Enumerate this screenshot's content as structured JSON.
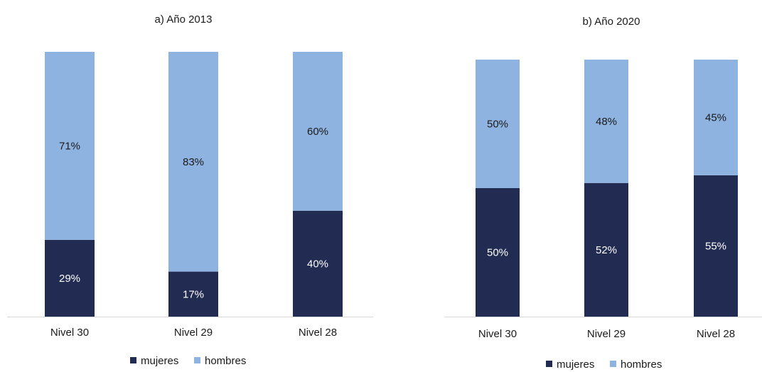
{
  "chart_data": [
    {
      "type": "bar",
      "stacked": true,
      "title": "a) Año 2013",
      "categories": [
        "Nivel 30",
        "Nivel 29",
        "Nivel 28"
      ],
      "series": [
        {
          "name": "mujeres",
          "values": [
            29,
            17,
            40
          ],
          "labels": [
            "29%",
            "17%",
            "40%"
          ]
        },
        {
          "name": "hombres",
          "values": [
            71,
            83,
            60
          ],
          "labels": [
            "71%",
            "83%",
            "60%"
          ]
        }
      ],
      "ylim": [
        0,
        100
      ],
      "grid": false,
      "legend": "bottom",
      "colors": {
        "mujeres": "#222b52",
        "hombres": "#8eb3e0"
      }
    },
    {
      "type": "bar",
      "stacked": true,
      "title": "b) Año 2020",
      "categories": [
        "Nivel 30",
        "Nivel 29",
        "Nivel 28"
      ],
      "series": [
        {
          "name": "mujeres",
          "values": [
            50,
            52,
            55
          ],
          "labels": [
            "50%",
            "52%",
            "55%"
          ]
        },
        {
          "name": "hombres",
          "values": [
            50,
            48,
            45
          ],
          "labels": [
            "50%",
            "48%",
            "45%"
          ]
        }
      ],
      "ylim": [
        0,
        100
      ],
      "grid": false,
      "legend": "bottom",
      "colors": {
        "mujeres": "#222b52",
        "hombres": "#8eb3e0"
      }
    }
  ]
}
